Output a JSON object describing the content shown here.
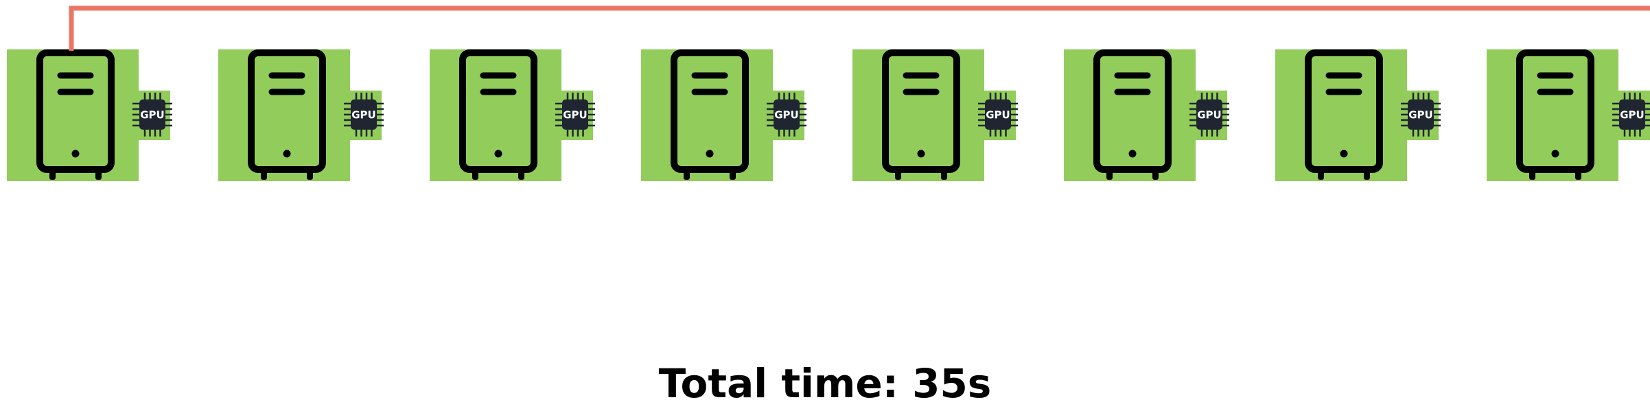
{
  "diagram": {
    "node_count": 8,
    "chip_label": "GPU",
    "nodes": [
      {
        "id": 1,
        "icon": "server-tower-icon",
        "chip_icon": "gpu-chip-icon"
      },
      {
        "id": 2,
        "icon": "server-tower-icon",
        "chip_icon": "gpu-chip-icon"
      },
      {
        "id": 3,
        "icon": "server-tower-icon",
        "chip_icon": "gpu-chip-icon"
      },
      {
        "id": 4,
        "icon": "server-tower-icon",
        "chip_icon": "gpu-chip-icon"
      },
      {
        "id": 5,
        "icon": "server-tower-icon",
        "chip_icon": "gpu-chip-icon"
      },
      {
        "id": 6,
        "icon": "server-tower-icon",
        "chip_icon": "gpu-chip-icon"
      },
      {
        "id": 7,
        "icon": "server-tower-icon",
        "chip_icon": "gpu-chip-icon"
      },
      {
        "id": 8,
        "icon": "server-tower-icon",
        "chip_icon": "gpu-chip-icon"
      }
    ],
    "connection": {
      "from": 1,
      "to": 8,
      "icon": "arrow-icon"
    },
    "colors": {
      "node_fill": "#92cc5a",
      "server_stroke": "#000000",
      "chip_fill": "#1f2631",
      "arrow": "#ec7666"
    }
  },
  "footer": {
    "total_time_text": "Total time: 35s"
  }
}
